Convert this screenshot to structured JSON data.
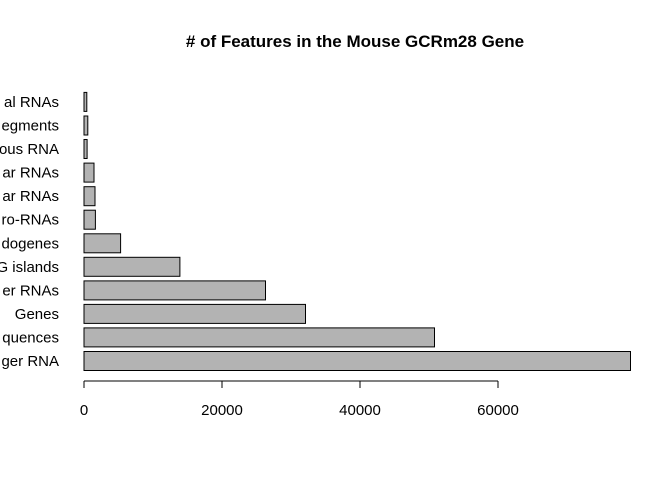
{
  "chart_data": {
    "type": "bar",
    "orientation": "horizontal",
    "title": "# of Features in the Mouse GCRm28 Gene",
    "xlabel": "",
    "ylabel": "",
    "categories": [
      "ger RNA",
      "quences",
      "Genes",
      "er RNAs",
      "G islands",
      "dogenes",
      "ro-RNAs",
      "ar RNAs",
      "ar RNAs",
      "ous RNA",
      "egments",
      "al RNAs"
    ],
    "values": [
      79200,
      50800,
      32100,
      26300,
      13900,
      5300,
      1650,
      1600,
      1450,
      450,
      550,
      400
    ],
    "xlim": [
      0,
      80000
    ],
    "xticks": [
      0,
      20000,
      40000,
      60000
    ],
    "xtick_labels": [
      "0",
      "20000",
      "40000",
      "60000"
    ],
    "bar_color": "#b3b3b3",
    "grid": false
  }
}
